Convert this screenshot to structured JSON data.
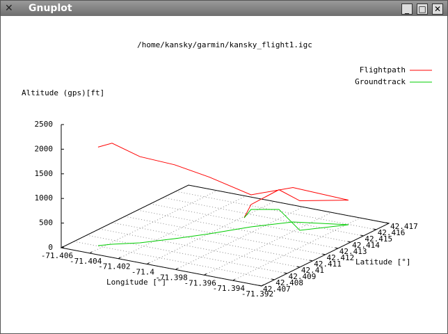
{
  "window": {
    "title": "Gnuplot"
  },
  "chart_data": {
    "type": "line3d",
    "title": "/home/kansky/garmin/kansky_flight1.igc",
    "xlabel": "Longitude [°]",
    "ylabel": "Latitude [°]",
    "zlabel": "Altitude (gps)[ft]",
    "xlim": [
      -71.406,
      -71.392
    ],
    "ylim": [
      42.407,
      42.417
    ],
    "zlim": [
      0,
      2500
    ],
    "xticks": [
      -71.406,
      -71.404,
      -71.402,
      -71.4,
      -71.398,
      -71.396,
      -71.394,
      -71.392
    ],
    "yticks": [
      42.407,
      42.408,
      42.409,
      42.41,
      42.411,
      42.412,
      42.413,
      42.414,
      42.415,
      42.416,
      42.417
    ],
    "zticks": [
      0,
      500,
      1000,
      1500,
      2000,
      2500
    ],
    "grid": true,
    "series": [
      {
        "name": "Flightpath",
        "color": "#ff0000",
        "x": [
          -71.40436,
          -71.4038,
          -71.40254,
          -71.40122,
          -71.39997,
          -71.39858,
          -71.39697,
          -71.39389,
          -71.39577,
          -71.39896,
          -71.40036,
          -71.39985
        ],
        "y": [
          42.40805,
          42.40852,
          42.40929,
          42.41053,
          42.41186,
          42.41357,
          42.41505,
          42.41595,
          42.41424,
          42.41619,
          42.41557,
          42.41446
        ],
        "z": [
          2000,
          2050,
          1750,
          1500,
          1150,
          650,
          700,
          500,
          600,
          400,
          100,
          0
        ]
      },
      {
        "name": "Groundtrack",
        "color": "#00cc00",
        "x": [
          -71.40436,
          -71.4038,
          -71.40254,
          -71.40122,
          -71.39997,
          -71.39858,
          -71.39697,
          -71.39389,
          -71.39577,
          -71.39896,
          -71.40036,
          -71.39985
        ],
        "y": [
          42.40805,
          42.40852,
          42.40929,
          42.41053,
          42.41186,
          42.41357,
          42.41505,
          42.41595,
          42.41424,
          42.41619,
          42.41557,
          42.41446
        ],
        "z": [
          0,
          0,
          0,
          0,
          0,
          0,
          0,
          0,
          0,
          0,
          0,
          0
        ]
      }
    ]
  }
}
